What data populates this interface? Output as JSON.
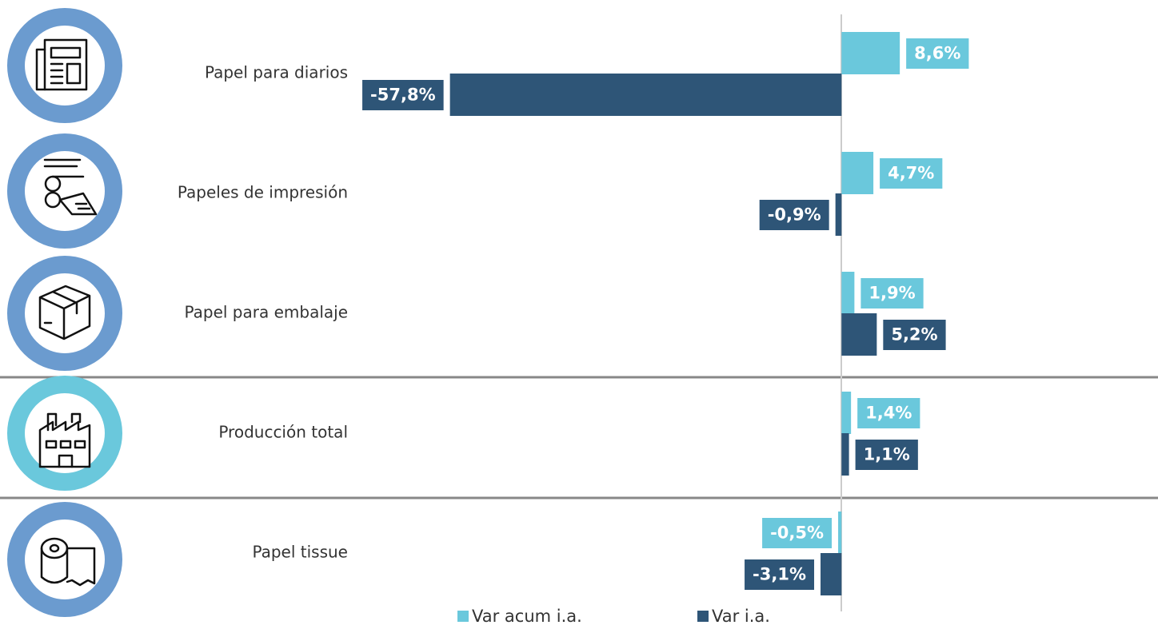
{
  "chart_data": {
    "type": "bar",
    "orientation": "horizontal",
    "categories": [
      "Papel para diarios",
      "Papeles de impresión",
      "Papel para embalaje",
      "Producción total",
      "Papel tissue"
    ],
    "series": [
      {
        "name": "Var acum i.a.",
        "color": "#6ac8dc",
        "values": [
          8.6,
          4.7,
          1.9,
          1.4,
          -0.5
        ],
        "value_labels": [
          "8,6%",
          "4,7%",
          "1,9%",
          "1,4%",
          "-0,5%"
        ]
      },
      {
        "name": "Var i.a.",
        "color": "#2e5577",
        "values": [
          -57.8,
          -0.9,
          5.2,
          1.1,
          -3.1
        ],
        "value_labels": [
          "-57,8%",
          "-0,9%",
          "5,2%",
          "1,1%",
          "-3,1%"
        ]
      }
    ],
    "xlim": [
      -60,
      10
    ]
  }
}
